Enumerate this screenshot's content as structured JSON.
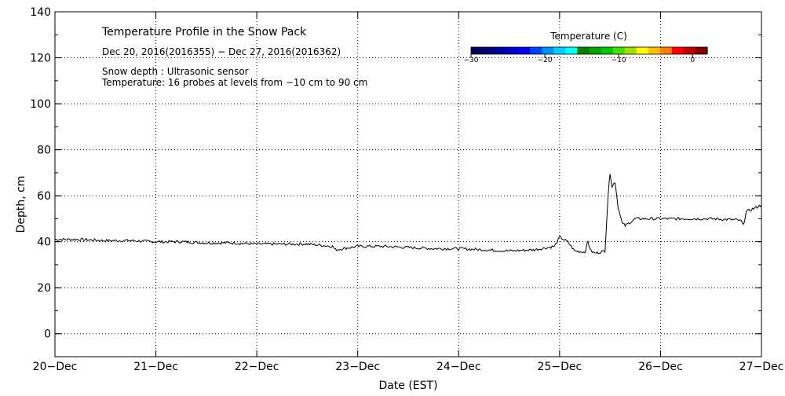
{
  "chart_data": {
    "type": "line",
    "title": "Temperature Profile in the Snow Pack",
    "subtitle": "Dec 20, 2016(2016355) − Dec 27, 2016(2016362)",
    "notes": [
      "Snow depth : Ultrasonic sensor",
      "Temperature: 16 probes at levels from −10 cm to 90 cm"
    ],
    "xlabel": "Date (EST)",
    "ylabel": "Depth, cm",
    "xlim": [
      0,
      7
    ],
    "ylim": [
      -10,
      140
    ],
    "x_ticks": [
      0,
      1,
      2,
      3,
      4,
      5,
      6,
      7
    ],
    "x_tick_labels": [
      "20−Dec",
      "21−Dec",
      "22−Dec",
      "23−Dec",
      "24−Dec",
      "25−Dec",
      "26−Dec",
      "27−Dec"
    ],
    "y_ticks": [
      0,
      20,
      40,
      60,
      80,
      100,
      120,
      140
    ],
    "y_tick_labels": [
      "0",
      "20",
      "40",
      "60",
      "80",
      "100",
      "120",
      "140"
    ],
    "grid": true,
    "series": [
      {
        "x": [
          0,
          0.25,
          0.5,
          0.75,
          1.0,
          1.25,
          1.5,
          1.75,
          2.0,
          2.25,
          2.5,
          2.75,
          2.78,
          3.0,
          3.25,
          3.5,
          3.75,
          4.0,
          4.25,
          4.5,
          4.75,
          4.95,
          5.0,
          5.08,
          5.15,
          5.25,
          5.28,
          5.31,
          5.35,
          5.45,
          5.48,
          5.5,
          5.52,
          5.55,
          5.58,
          5.6,
          5.62,
          5.65,
          5.75,
          6.0,
          6.25,
          6.5,
          6.75,
          6.8,
          6.82,
          6.85,
          6.9,
          7.0
        ],
        "y": [
          41,
          41,
          40.5,
          40.5,
          40,
          40,
          39.5,
          39.5,
          39,
          39,
          39,
          38,
          36.5,
          38,
          38,
          37.5,
          37,
          37,
          36.5,
          36,
          36.5,
          38,
          42,
          40,
          36,
          35.5,
          40,
          36,
          35,
          36,
          60,
          70,
          64,
          66,
          55,
          52,
          48,
          47,
          50,
          50,
          50,
          50,
          49.5,
          49,
          47,
          53,
          54,
          56
        ]
      }
    ],
    "colorbar": {
      "title": "Temperature (C)",
      "tick_labels": [
        "−30",
        "−20",
        "−10",
        "0"
      ],
      "tick_values": [
        -30,
        -20,
        -10,
        0
      ],
      "range": [
        -30,
        2
      ],
      "colors": [
        "#00005a",
        "#000078",
        "#0000a0",
        "#0000c8",
        "#0000f0",
        "#0040ff",
        "#0090ff",
        "#00d0ff",
        "#00ffff",
        "#008000",
        "#00a000",
        "#00c800",
        "#40e000",
        "#a0e000",
        "#ffff00",
        "#ffc000",
        "#ff8000",
        "#ff0000",
        "#c00000",
        "#800000"
      ]
    },
    "colors": {
      "line": "#000000",
      "grid": "#000000",
      "background": "#ffffff"
    }
  }
}
